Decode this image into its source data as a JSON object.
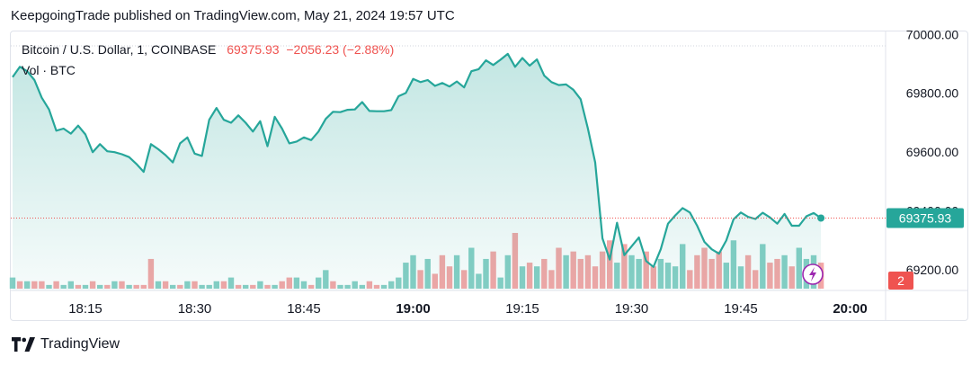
{
  "header": {
    "published": "KeepgoingTrade published on TradingView.com, May 21, 2024 19:57 UTC"
  },
  "legend": {
    "symbol": "Bitcoin / U.S. Dollar, 1, COINBASE",
    "price": "69375.93",
    "change": "−2056.23 (−2.88%)",
    "volume_label": "Vol · BTC"
  },
  "last_price_badge": "69375.93",
  "alert_count": "2",
  "footer": {
    "brand": "TradingView"
  },
  "colors": {
    "line": "#26a69a",
    "down": "#ef5350",
    "up": "#26a69a",
    "down_vol": "#f4a6a6",
    "up_vol": "#86cfc5"
  },
  "chart_data": {
    "type": "area",
    "title": "Bitcoin / U.S. Dollar, 1, COINBASE",
    "xlabel": "",
    "ylabel": "",
    "x_ticks": [
      "18:15",
      "18:30",
      "18:45",
      "19:00",
      "19:15",
      "19:30",
      "19:45",
      "20:00"
    ],
    "y_ticks": [
      "70000.00",
      "69800.00",
      "69600.00",
      "69400.00",
      "69200.00"
    ],
    "ylim": [
      69130,
      70010
    ],
    "x_start": "18:05",
    "x_step_minutes": 1,
    "series": [
      {
        "values": [
          69855,
          69890,
          69875,
          69845,
          69785,
          69745,
          69673,
          69680,
          69663,
          69690,
          69660,
          69600,
          69627,
          69603,
          69600,
          69593,
          69583,
          69560,
          69533,
          69627,
          69610,
          69590,
          69565,
          69630,
          69650,
          69595,
          69587,
          69710,
          69750,
          69710,
          69700,
          69725,
          69700,
          69670,
          69705,
          69620,
          69720,
          69680,
          69630,
          69636,
          69650,
          69641,
          69670,
          69713,
          69737,
          69736,
          69744,
          69745,
          69770,
          69740,
          69739,
          69739,
          69743,
          69790,
          69801,
          69849,
          69838,
          69845,
          69825,
          69835,
          69823,
          69840,
          69820,
          69875,
          69882,
          69912,
          69896,
          69914,
          69934,
          69890,
          69920,
          69894,
          69915,
          69860,
          69838,
          69828,
          69830,
          69812,
          69780,
          69680,
          69565,
          69307,
          69235,
          69360,
          69250,
          69280,
          69310,
          69230,
          69210,
          69270,
          69357,
          69385,
          69410,
          69395,
          69350,
          69295,
          69270,
          69255,
          69300,
          69372,
          69395,
          69380,
          69373,
          69394,
          69378,
          69357,
          69390,
          69350,
          69350,
          69382,
          69393,
          69376
        ]
      }
    ],
    "volume_series": {
      "name": "Vol · BTC",
      "values": [
        3,
        2,
        2,
        2,
        2,
        1,
        2,
        1,
        2,
        1,
        1,
        2,
        1,
        1,
        2,
        2,
        1,
        1,
        1,
        8,
        2,
        2,
        1,
        1,
        2,
        2,
        1,
        1,
        2,
        2,
        3,
        1,
        1,
        1,
        2,
        1,
        1,
        2,
        3,
        3,
        2,
        1,
        3,
        5,
        2,
        1,
        1,
        2,
        1,
        2,
        1,
        1,
        2,
        3,
        7,
        9,
        5,
        8,
        4,
        9,
        6,
        9,
        5,
        11,
        4,
        8,
        10,
        3,
        9,
        15,
        6,
        7,
        6,
        8,
        5,
        11,
        9,
        10,
        8,
        9,
        6,
        10,
        13,
        7,
        12,
        9,
        8,
        10,
        6,
        8,
        7,
        6,
        12,
        5,
        9,
        11,
        8,
        10,
        7,
        13,
        6,
        9,
        5,
        12,
        7,
        8,
        9,
        6,
        11,
        8,
        9,
        7
      ],
      "up": [
        true,
        false,
        true,
        false,
        false,
        true,
        false,
        true,
        true,
        false,
        true,
        false,
        true,
        false,
        true,
        false,
        true,
        false,
        false,
        false,
        true,
        false,
        true,
        false,
        true,
        false,
        true,
        true,
        true,
        false,
        true,
        false,
        true,
        false,
        true,
        false,
        true,
        false,
        false,
        true,
        true,
        false,
        true,
        true,
        false,
        true,
        true,
        true,
        true,
        false,
        false,
        true,
        true,
        true,
        true,
        true,
        false,
        true,
        false,
        false,
        false,
        true,
        false,
        true,
        true,
        true,
        false,
        true,
        true,
        false,
        true,
        false,
        true,
        false,
        false,
        false,
        true,
        false,
        false,
        false,
        false,
        false,
        false,
        true,
        false,
        true,
        true,
        false,
        false,
        true,
        true,
        true,
        true,
        false,
        false,
        false,
        false,
        false,
        true,
        true,
        true,
        false,
        false,
        true,
        false,
        false,
        true,
        false,
        true,
        true,
        true,
        false
      ]
    }
  }
}
